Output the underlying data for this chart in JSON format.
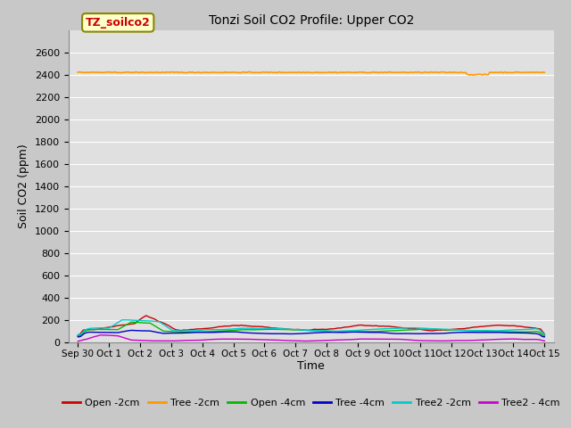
{
  "title": "Tonzi Soil CO2 Profile: Upper CO2",
  "ylabel": "Soil CO2 (ppm)",
  "xlabel": "Time",
  "ylim": [
    0,
    2800
  ],
  "yticks": [
    0,
    200,
    400,
    600,
    800,
    1000,
    1200,
    1400,
    1600,
    1800,
    2000,
    2200,
    2400,
    2600
  ],
  "fig_bg_color": "#c8c8c8",
  "plot_bg_color": "#e0e0e0",
  "legend_label": "TZ_soilco2",
  "legend_box_facecolor": "#ffffcc",
  "legend_box_edgecolor": "#888800",
  "series_colors": {
    "open_2cm": "#cc0000",
    "tree_2cm": "#ff9900",
    "open_4cm": "#00bb00",
    "tree_4cm": "#0000cc",
    "tree2_2cm": "#00cccc",
    "tree2_4cm": "#cc00cc"
  },
  "n_points": 350,
  "x_start": -0.3,
  "x_end": 15.3,
  "xtick_positions": [
    0,
    1,
    2,
    3,
    4,
    5,
    6,
    7,
    8,
    9,
    10,
    11,
    12,
    13,
    14,
    15
  ],
  "xtick_labels": [
    "Sep 30",
    "Oct 1",
    "Oct 2",
    "Oct 3",
    "Oct 4",
    "Oct 5",
    "Oct 6",
    "Oct 7",
    "Oct 8",
    "Oct 9",
    "Oct 10",
    "Oct 11",
    "Oct 12",
    "Oct 13",
    "Oct 14",
    "Oct 15"
  ]
}
